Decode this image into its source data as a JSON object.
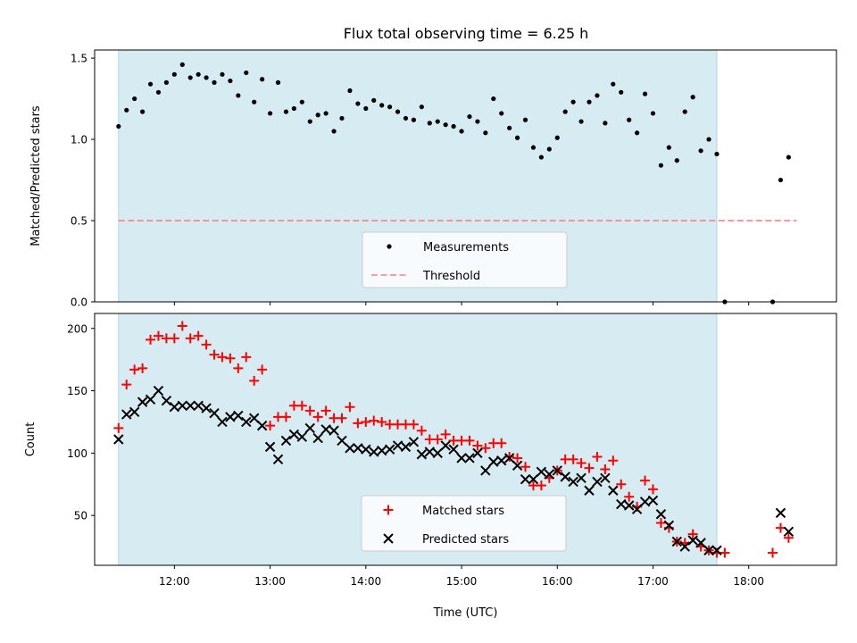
{
  "title": "Flux total observing time = 6.25 h",
  "colors": {
    "span": "#add8e6",
    "measurement": "#000000",
    "threshold": "#ff7f7f",
    "matched": "#ff0000",
    "predicted": "#000000"
  },
  "chart_data": [
    {
      "type": "scatter",
      "ylabel": "Matched/Predicted stars",
      "ylim": [
        0,
        1.55
      ],
      "y_ticks": [
        "0.0",
        "0.5",
        "1.0",
        "1.5"
      ],
      "xlim": [
        "11:10",
        "18:55"
      ],
      "shaded_span": [
        "11:25",
        "17:40"
      ],
      "threshold": {
        "label": "Threshold",
        "value": 0.5,
        "x": [
          "11:25",
          "18:30"
        ]
      },
      "legend": {
        "placement": "lower-center",
        "entries": [
          "Measurements",
          "Threshold"
        ]
      },
      "series": [
        {
          "name": "Measurements",
          "points": [
            [
              "11:25",
              1.08
            ],
            [
              "11:30",
              1.18
            ],
            [
              "11:35",
              1.25
            ],
            [
              "11:40",
              1.17
            ],
            [
              "11:45",
              1.34
            ],
            [
              "11:50",
              1.29
            ],
            [
              "11:55",
              1.35
            ],
            [
              "12:00",
              1.4
            ],
            [
              "12:05",
              1.46
            ],
            [
              "12:10",
              1.38
            ],
            [
              "12:15",
              1.4
            ],
            [
              "12:20",
              1.38
            ],
            [
              "12:25",
              1.35
            ],
            [
              "12:30",
              1.4
            ],
            [
              "12:35",
              1.36
            ],
            [
              "12:40",
              1.27
            ],
            [
              "12:45",
              1.41
            ],
            [
              "12:50",
              1.23
            ],
            [
              "12:55",
              1.37
            ],
            [
              "13:00",
              1.16
            ],
            [
              "13:05",
              1.35
            ],
            [
              "13:10",
              1.17
            ],
            [
              "13:15",
              1.19
            ],
            [
              "13:20",
              1.23
            ],
            [
              "13:25",
              1.11
            ],
            [
              "13:30",
              1.15
            ],
            [
              "13:35",
              1.16
            ],
            [
              "13:40",
              1.05
            ],
            [
              "13:45",
              1.13
            ],
            [
              "13:50",
              1.3
            ],
            [
              "13:55",
              1.22
            ],
            [
              "14:00",
              1.19
            ],
            [
              "14:05",
              1.24
            ],
            [
              "14:10",
              1.21
            ],
            [
              "14:15",
              1.2
            ],
            [
              "14:20",
              1.17
            ],
            [
              "14:25",
              1.13
            ],
            [
              "14:30",
              1.12
            ],
            [
              "14:35",
              1.2
            ],
            [
              "14:40",
              1.1
            ],
            [
              "14:45",
              1.11
            ],
            [
              "14:50",
              1.09
            ],
            [
              "14:55",
              1.08
            ],
            [
              "15:00",
              1.05
            ],
            [
              "15:05",
              1.14
            ],
            [
              "15:10",
              1.11
            ],
            [
              "15:15",
              1.04
            ],
            [
              "15:20",
              1.25
            ],
            [
              "15:25",
              1.16
            ],
            [
              "15:30",
              1.07
            ],
            [
              "15:35",
              1.01
            ],
            [
              "15:40",
              1.12
            ],
            [
              "15:45",
              0.95
            ],
            [
              "15:50",
              0.89
            ],
            [
              "15:55",
              0.94
            ],
            [
              "16:00",
              1.01
            ],
            [
              "16:05",
              1.17
            ],
            [
              "16:10",
              1.23
            ],
            [
              "16:15",
              1.11
            ],
            [
              "16:20",
              1.23
            ],
            [
              "16:25",
              1.27
            ],
            [
              "16:30",
              1.1
            ],
            [
              "16:35",
              1.34
            ],
            [
              "16:40",
              1.29
            ],
            [
              "16:45",
              1.12
            ],
            [
              "16:50",
              1.04
            ],
            [
              "16:55",
              1.28
            ],
            [
              "17:00",
              1.16
            ],
            [
              "17:05",
              0.84
            ],
            [
              "17:10",
              0.95
            ],
            [
              "17:15",
              0.87
            ],
            [
              "17:20",
              1.17
            ],
            [
              "17:25",
              1.26
            ],
            [
              "17:30",
              0.93
            ],
            [
              "17:35",
              1.0
            ],
            [
              "17:40",
              0.91
            ],
            [
              "17:45",
              0.0
            ],
            [
              "18:15",
              0.0
            ],
            [
              "18:20",
              0.75
            ],
            [
              "18:25",
              0.89
            ]
          ]
        }
      ]
    },
    {
      "type": "scatter",
      "xlabel": "Time (UTC)",
      "ylabel": "Count",
      "ylim": [
        10,
        212
      ],
      "y_ticks": [
        "50",
        "100",
        "150",
        "200"
      ],
      "xlim": [
        "11:10",
        "18:55"
      ],
      "x_ticks": [
        "12:00",
        "13:00",
        "14:00",
        "15:00",
        "16:00",
        "17:00",
        "18:00"
      ],
      "shaded_span": [
        "11:25",
        "17:40"
      ],
      "legend": {
        "placement": "lower-center",
        "entries": [
          "Matched stars",
          "Predicted stars"
        ]
      },
      "series": [
        {
          "name": "Matched stars",
          "marker": "+",
          "points": [
            [
              "11:25",
              120
            ],
            [
              "11:30",
              155
            ],
            [
              "11:35",
              167
            ],
            [
              "11:40",
              168
            ],
            [
              "11:45",
              191
            ],
            [
              "11:50",
              194
            ],
            [
              "11:55",
              192
            ],
            [
              "12:00",
              192
            ],
            [
              "12:05",
              202
            ],
            [
              "12:10",
              192
            ],
            [
              "12:15",
              194
            ],
            [
              "12:20",
              187
            ],
            [
              "12:25",
              179
            ],
            [
              "12:30",
              177
            ],
            [
              "12:35",
              176
            ],
            [
              "12:40",
              168
            ],
            [
              "12:45",
              177
            ],
            [
              "12:50",
              158
            ],
            [
              "12:55",
              167
            ],
            [
              "13:00",
              122
            ],
            [
              "13:05",
              129
            ],
            [
              "13:10",
              129
            ],
            [
              "13:15",
              138
            ],
            [
              "13:20",
              138
            ],
            [
              "13:25",
              134
            ],
            [
              "13:30",
              129
            ],
            [
              "13:35",
              134
            ],
            [
              "13:40",
              128
            ],
            [
              "13:45",
              128
            ],
            [
              "13:50",
              137
            ],
            [
              "13:55",
              124
            ],
            [
              "14:00",
              125
            ],
            [
              "14:05",
              126
            ],
            [
              "14:10",
              125
            ],
            [
              "14:15",
              123
            ],
            [
              "14:20",
              123
            ],
            [
              "14:25",
              123
            ],
            [
              "14:30",
              123
            ],
            [
              "14:35",
              118
            ],
            [
              "14:40",
              111
            ],
            [
              "14:45",
              111
            ],
            [
              "14:50",
              115
            ],
            [
              "14:55",
              110
            ],
            [
              "15:00",
              110
            ],
            [
              "15:05",
              110
            ],
            [
              "15:10",
              106
            ],
            [
              "15:15",
              104
            ],
            [
              "15:20",
              108
            ],
            [
              "15:25",
              108
            ],
            [
              "15:30",
              97
            ],
            [
              "15:35",
              96
            ],
            [
              "15:40",
              89
            ],
            [
              "15:45",
              74
            ],
            [
              "15:50",
              74
            ],
            [
              "15:55",
              80
            ],
            [
              "16:00",
              86
            ],
            [
              "16:05",
              95
            ],
            [
              "16:10",
              95
            ],
            [
              "16:15",
              92
            ],
            [
              "16:20",
              88
            ],
            [
              "16:25",
              97
            ],
            [
              "16:30",
              87
            ],
            [
              "16:35",
              94
            ],
            [
              "16:40",
              75
            ],
            [
              "16:45",
              65
            ],
            [
              "16:50",
              57
            ],
            [
              "16:55",
              78
            ],
            [
              "17:00",
              71
            ],
            [
              "17:05",
              44
            ],
            [
              "17:10",
              40
            ],
            [
              "17:15",
              29
            ],
            [
              "17:20",
              28
            ],
            [
              "17:25",
              35
            ],
            [
              "17:30",
              25
            ],
            [
              "17:35",
              22
            ],
            [
              "17:40",
              20
            ],
            [
              "17:45",
              20
            ],
            [
              "18:15",
              20
            ],
            [
              "18:20",
              40
            ],
            [
              "18:25",
              32
            ]
          ]
        },
        {
          "name": "Predicted stars",
          "marker": "x",
          "points": [
            [
              "11:25",
              111
            ],
            [
              "11:30",
              131
            ],
            [
              "11:35",
              133
            ],
            [
              "11:40",
              141
            ],
            [
              "11:45",
              143
            ],
            [
              "11:50",
              150
            ],
            [
              "11:55",
              142
            ],
            [
              "12:00",
              137
            ],
            [
              "12:05",
              138
            ],
            [
              "12:10",
              138
            ],
            [
              "12:15",
              138
            ],
            [
              "12:20",
              136
            ],
            [
              "12:25",
              132
            ],
            [
              "12:30",
              125
            ],
            [
              "12:35",
              129
            ],
            [
              "12:40",
              130
            ],
            [
              "12:45",
              125
            ],
            [
              "12:50",
              128
            ],
            [
              "12:55",
              122
            ],
            [
              "13:00",
              105
            ],
            [
              "13:05",
              95
            ],
            [
              "13:10",
              110
            ],
            [
              "13:15",
              115
            ],
            [
              "13:20",
              113
            ],
            [
              "13:25",
              120
            ],
            [
              "13:30",
              112
            ],
            [
              "13:35",
              119
            ],
            [
              "13:40",
              118
            ],
            [
              "13:45",
              110
            ],
            [
              "13:50",
              104
            ],
            [
              "13:55",
              104
            ],
            [
              "14:00",
              103
            ],
            [
              "14:05",
              101
            ],
            [
              "14:10",
              102
            ],
            [
              "14:15",
              103
            ],
            [
              "14:20",
              106
            ],
            [
              "14:25",
              105
            ],
            [
              "14:30",
              109
            ],
            [
              "14:35",
              99
            ],
            [
              "14:40",
              101
            ],
            [
              "14:45",
              100
            ],
            [
              "14:50",
              106
            ],
            [
              "14:55",
              103
            ],
            [
              "15:00",
              96
            ],
            [
              "15:05",
              96
            ],
            [
              "15:10",
              100
            ],
            [
              "15:15",
              86
            ],
            [
              "15:20",
              93
            ],
            [
              "15:25",
              94
            ],
            [
              "15:30",
              96
            ],
            [
              "15:35",
              90
            ],
            [
              "15:40",
              79
            ],
            [
              "15:45",
              79
            ],
            [
              "15:50",
              85
            ],
            [
              "15:55",
              83
            ],
            [
              "16:00",
              86
            ],
            [
              "16:05",
              81
            ],
            [
              "16:10",
              77
            ],
            [
              "16:15",
              80
            ],
            [
              "16:20",
              70
            ],
            [
              "16:25",
              77
            ],
            [
              "16:30",
              80
            ],
            [
              "16:35",
              70
            ],
            [
              "16:40",
              59
            ],
            [
              "16:45",
              58
            ],
            [
              "16:50",
              55
            ],
            [
              "16:55",
              61
            ],
            [
              "17:00",
              62
            ],
            [
              "17:05",
              51
            ],
            [
              "17:10",
              42
            ],
            [
              "17:15",
              29
            ],
            [
              "17:20",
              25
            ],
            [
              "17:25",
              30
            ],
            [
              "17:30",
              28
            ],
            [
              "17:35",
              22
            ],
            [
              "17:40",
              22
            ],
            [
              "18:20",
              52
            ],
            [
              "18:25",
              37
            ]
          ]
        }
      ]
    }
  ]
}
